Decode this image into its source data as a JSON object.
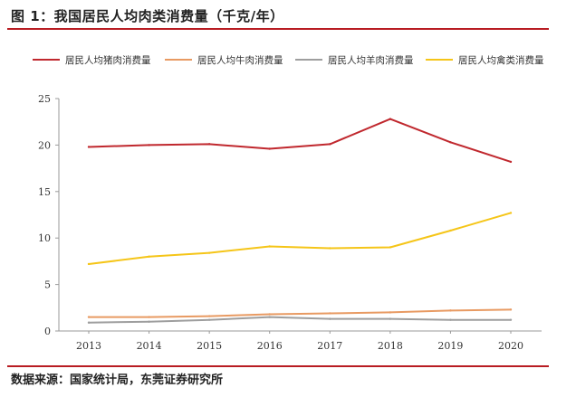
{
  "figure": {
    "title": "图 1：我国居民人均肉类消费量（千克/年）",
    "source": "数据来源：国家统计局，东莞证券研究所"
  },
  "colors": {
    "pork": "#c0282e",
    "beef": "#e89a62",
    "mutton": "#9e9e9e",
    "poultry": "#f5c518",
    "accent_rule": "#b81c22",
    "axis": "#9a9a9a"
  },
  "chart_data": {
    "type": "line",
    "title": "我国居民人均肉类消费量（千克/年）",
    "xlabel": "",
    "ylabel": "",
    "x": [
      "2013",
      "2014",
      "2015",
      "2016",
      "2017",
      "2018",
      "2019",
      "2020"
    ],
    "ylim": [
      0,
      25
    ],
    "yticks": [
      0,
      5,
      10,
      15,
      20,
      25
    ],
    "grid": false,
    "legend_position": "top",
    "series": [
      {
        "name": "居民人均猪肉消费量",
        "color": "#c0282e",
        "values": [
          19.8,
          20.0,
          20.1,
          19.6,
          20.1,
          22.8,
          20.3,
          18.2
        ]
      },
      {
        "name": "居民人均牛肉消费量",
        "color": "#e89a62",
        "values": [
          1.5,
          1.5,
          1.6,
          1.8,
          1.9,
          2.0,
          2.2,
          2.3
        ]
      },
      {
        "name": "居民人均羊肉消费量",
        "color": "#9e9e9e",
        "values": [
          0.9,
          1.0,
          1.2,
          1.5,
          1.3,
          1.3,
          1.2,
          1.2
        ]
      },
      {
        "name": "居民人均禽类消费量",
        "color": "#f5c518",
        "values": [
          7.2,
          8.0,
          8.4,
          9.1,
          8.9,
          9.0,
          10.8,
          12.7
        ]
      }
    ]
  }
}
